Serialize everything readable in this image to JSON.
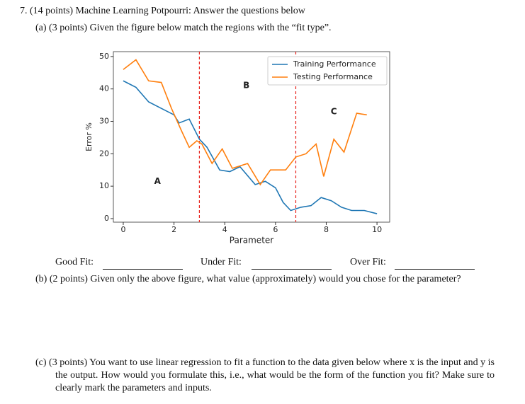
{
  "question": {
    "title": "7. (14 points) Machine Learning Potpourri: Answer the questions below",
    "part_a": "(a) (3 points) Given the figure below match the regions with the “fit type”.",
    "blanks": [
      "Good Fit:",
      "Under Fit:",
      "Over Fit:"
    ],
    "part_b": "(b) (2 points) Given only the above figure, what value (approximately) would you chose for the parameter?",
    "part_c": "(c) (3 points) You want to use linear regression to fit a function to the data given below where x is the input and y is the output. How would you formulate this, i.e., what would be the form of the function you fit? Make sure to clearly mark the parameters and inputs."
  },
  "chart_data": {
    "type": "line",
    "xlabel": "Parameter",
    "ylabel": "Error %",
    "xlim": [
      -0.39,
      10.5
    ],
    "ylim": [
      -1.1,
      51.5
    ],
    "xticks": [
      0,
      2,
      4,
      6,
      8,
      10
    ],
    "yticks": [
      0,
      10,
      20,
      30,
      40,
      50
    ],
    "legend": "upper right",
    "series": [
      {
        "name": "Training Performance",
        "color": "#1f77b4",
        "x": [
          0,
          0.5,
          1,
          1.5,
          2,
          2.2,
          2.6,
          3,
          3.3,
          3.8,
          4.2,
          4.6,
          5.2,
          5.6,
          6,
          6.3,
          6.6,
          7,
          7.4,
          7.8,
          8.2,
          8.6,
          9,
          9.5,
          10
        ],
        "values": [
          42.5,
          40.5,
          36,
          34,
          32,
          29.5,
          30.7,
          24.5,
          22,
          15,
          14.5,
          16,
          10.5,
          11.5,
          9.5,
          5,
          2.5,
          3.5,
          4,
          6.5,
          5.5,
          3.5,
          2.5,
          2.5,
          1.5
        ]
      },
      {
        "name": "Testing Performance",
        "color": "#ff7f0e",
        "x": [
          0,
          0.5,
          1,
          1.5,
          1.9,
          2.3,
          2.6,
          2.9,
          3.1,
          3.5,
          3.9,
          4.3,
          4.9,
          5.4,
          5.8,
          6.2,
          6.4,
          6.8,
          7.2,
          7.6,
          7.9,
          8.3,
          8.7,
          9.2,
          9.6
        ],
        "values": [
          46,
          49,
          42.5,
          42,
          34,
          27,
          22,
          24,
          23,
          17,
          21.5,
          15.5,
          17,
          10.5,
          15,
          15,
          15,
          19,
          20,
          23,
          13,
          24.5,
          20.5,
          32.5,
          32
        ]
      }
    ],
    "vlines": {
      "color": "#e8201a",
      "values": [
        3.0,
        6.8
      ]
    },
    "annotations": [
      {
        "text": "A",
        "x": 1.35,
        "y": 11.5,
        "color": "#e8201a"
      },
      {
        "text": "B",
        "x": 4.85,
        "y": 41,
        "color": "#e8201a"
      },
      {
        "text": "C",
        "x": 8.3,
        "y": 33,
        "color": "#e8201a"
      }
    ]
  }
}
